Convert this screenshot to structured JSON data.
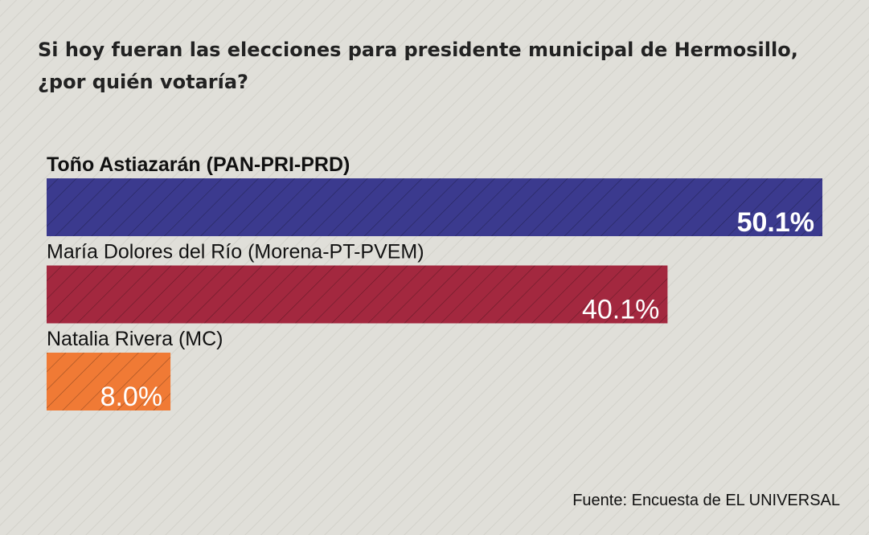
{
  "chart_data": {
    "type": "bar",
    "orientation": "horizontal",
    "title": "Si hoy fueran las elecciones para presidente municipal de Hermosillo, ¿por quién votaría?",
    "categories": [
      "Toño Astiazarán (PAN-PRI-PRD)",
      "María Dolores del Río (Morena-PT-PVEM)",
      "Natalia Rivera (MC)"
    ],
    "values": [
      50.1,
      40.1,
      8.0
    ],
    "value_labels": [
      "50.1%",
      "40.1%",
      "8.0%"
    ],
    "colors": [
      "#3b3a8e",
      "#a3283f",
      "#f07a35"
    ],
    "source": "Fuente: Encuesta de EL UNIVERSAL"
  }
}
